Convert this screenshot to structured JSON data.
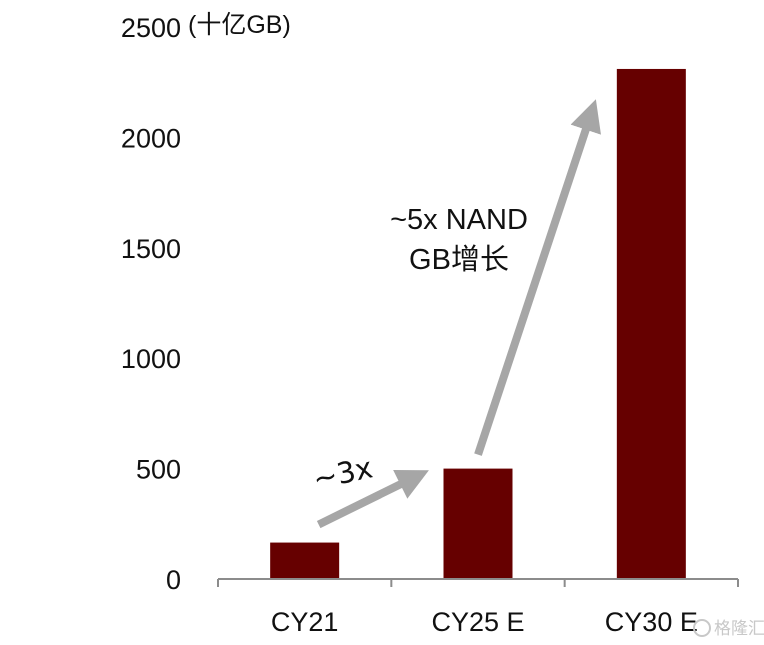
{
  "chart_data": {
    "type": "bar",
    "ylabel": "(十亿GB)",
    "categories": [
      "CY21",
      "CY25 E",
      "CY30 E"
    ],
    "values": [
      165,
      500,
      2310
    ],
    "ylim": [
      0,
      2500
    ],
    "yticks": [
      0,
      500,
      1000,
      1500,
      2000,
      2500
    ],
    "grid": false,
    "bar_color": "#660000",
    "arrow_color": "#a6a6a6",
    "annotations": [
      {
        "text": "~3x",
        "from_category": 0,
        "to_category": 1
      },
      {
        "text": "~5x NAND",
        "text2": "GB增长",
        "from_category": 1,
        "to_category": 2
      }
    ]
  },
  "watermark": {
    "text": "格隆汇"
  }
}
